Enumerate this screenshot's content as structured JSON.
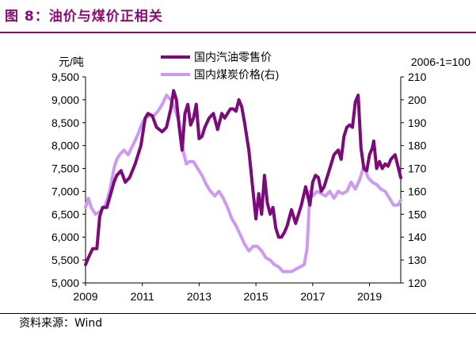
{
  "title": "图 8：油价与煤价正相关",
  "source": "资料来源：Wind",
  "colors": {
    "accent": "#8b0a74",
    "oil": "#7b0a7a",
    "coal": "#cc9bf0"
  },
  "chart_data": {
    "type": "line",
    "left_unit": "元/吨",
    "right_note": "2006-1=100",
    "y_left": {
      "min": 5000,
      "max": 9500,
      "ticks": [
        "5,000",
        "5,500",
        "6,000",
        "6,500",
        "7,000",
        "7,500",
        "8,000",
        "8,500",
        "9,000",
        "9,500"
      ]
    },
    "y_right": {
      "min": 120,
      "max": 210,
      "ticks": [
        "120",
        "130",
        "140",
        "150",
        "160",
        "170",
        "180",
        "190",
        "200",
        "210"
      ]
    },
    "x_range": [
      2009.0,
      2020.1
    ],
    "x_ticks": [
      "2009",
      "2011",
      "2013",
      "2015",
      "2017",
      "2019"
    ],
    "series": [
      {
        "name": "国内汽油零售价",
        "axis": "left",
        "color": "#7b0a7a",
        "x": [
          2009.0,
          2009.1,
          2009.25,
          2009.4,
          2009.5,
          2009.6,
          2009.75,
          2010.0,
          2010.1,
          2010.25,
          2010.4,
          2010.55,
          2010.75,
          2010.95,
          2011.1,
          2011.2,
          2011.35,
          2011.5,
          2011.7,
          2011.85,
          2012.0,
          2012.1,
          2012.2,
          2012.3,
          2012.4,
          2012.5,
          2012.6,
          2012.7,
          2012.8,
          2012.9,
          2013.0,
          2013.1,
          2013.2,
          2013.35,
          2013.5,
          2013.65,
          2013.8,
          2013.9,
          2014.0,
          2014.1,
          2014.2,
          2014.3,
          2014.4,
          2014.5,
          2014.6,
          2014.75,
          2014.9,
          2015.0,
          2015.1,
          2015.2,
          2015.3,
          2015.4,
          2015.5,
          2015.6,
          2015.7,
          2015.8,
          2015.9,
          2016.0,
          2016.1,
          2016.25,
          2016.4,
          2016.5,
          2016.6,
          2016.75,
          2016.9,
          2017.0,
          2017.1,
          2017.2,
          2017.3,
          2017.4,
          2017.5,
          2017.6,
          2017.75,
          2017.9,
          2018.0,
          2018.1,
          2018.2,
          2018.3,
          2018.4,
          2018.5,
          2018.6,
          2018.7,
          2018.8,
          2018.9,
          2019.0,
          2019.1,
          2019.15,
          2019.25,
          2019.35,
          2019.45,
          2019.55,
          2019.65,
          2019.75,
          2019.9,
          2020.0,
          2020.1
        ],
        "values": [
          5400,
          5550,
          5750,
          5750,
          6450,
          6650,
          6650,
          7200,
          7350,
          7450,
          7200,
          7300,
          7600,
          8000,
          8600,
          8700,
          8650,
          8400,
          8300,
          8400,
          8800,
          9200,
          9000,
          8400,
          7900,
          8700,
          8900,
          8450,
          8600,
          8900,
          8150,
          8200,
          8400,
          8600,
          8700,
          8350,
          8700,
          8600,
          8700,
          8800,
          8800,
          8750,
          9000,
          8850,
          8500,
          7900,
          7000,
          6400,
          6950,
          6500,
          7350,
          6750,
          6500,
          6650,
          6200,
          6000,
          6000,
          6100,
          6250,
          6600,
          6300,
          6500,
          6700,
          7100,
          6700,
          7200,
          7350,
          7300,
          7000,
          7100,
          7300,
          7500,
          7800,
          7900,
          7700,
          8200,
          8400,
          8450,
          8400,
          8950,
          9100,
          7950,
          7500,
          7450,
          7800,
          7950,
          8100,
          7500,
          7650,
          7500,
          7600,
          7550,
          7700,
          7800,
          7550,
          7300
        ]
      },
      {
        "name": "国内煤炭价格(右)",
        "axis": "right",
        "color": "#cc9bf0",
        "x": [
          2009.0,
          2009.1,
          2009.2,
          2009.35,
          2009.5,
          2009.7,
          2009.85,
          2010.0,
          2010.1,
          2010.2,
          2010.35,
          2010.5,
          2010.7,
          2010.85,
          2011.0,
          2011.1,
          2011.25,
          2011.4,
          2011.55,
          2011.7,
          2011.85,
          2012.0,
          2012.15,
          2012.3,
          2012.45,
          2012.55,
          2012.65,
          2012.8,
          2012.95,
          2013.1,
          2013.25,
          2013.4,
          2013.55,
          2013.7,
          2013.85,
          2014.0,
          2014.15,
          2014.3,
          2014.45,
          2014.6,
          2014.75,
          2014.9,
          2015.05,
          2015.2,
          2015.35,
          2015.5,
          2015.65,
          2015.8,
          2015.95,
          2016.1,
          2016.25,
          2016.4,
          2016.55,
          2016.7,
          2016.8,
          2016.9,
          2017.0,
          2017.15,
          2017.3,
          2017.45,
          2017.6,
          2017.75,
          2017.9,
          2018.05,
          2018.2,
          2018.35,
          2018.5,
          2018.65,
          2018.8,
          2018.95,
          2019.1,
          2019.25,
          2019.4,
          2019.55,
          2019.7,
          2019.85,
          2020.0,
          2020.1
        ],
        "values": [
          153,
          157,
          153,
          150,
          151,
          154,
          160,
          170,
          174,
          176,
          178,
          176,
          181,
          185,
          190,
          192,
          193,
          193,
          195,
          198,
          202,
          200,
          196,
          190,
          177,
          172,
          173,
          173,
          170,
          167,
          163,
          160,
          158,
          160,
          157,
          153,
          148,
          145,
          141,
          137,
          134,
          136,
          136,
          134,
          131,
          130,
          128,
          127,
          125,
          125,
          125,
          126,
          127,
          128,
          135,
          160,
          158,
          160,
          159,
          158,
          160,
          157,
          160,
          159,
          160,
          164,
          161,
          165,
          171,
          166,
          164,
          163,
          161,
          160,
          157,
          154,
          154,
          156
        ]
      }
    ],
    "legend_position": "top-center"
  }
}
